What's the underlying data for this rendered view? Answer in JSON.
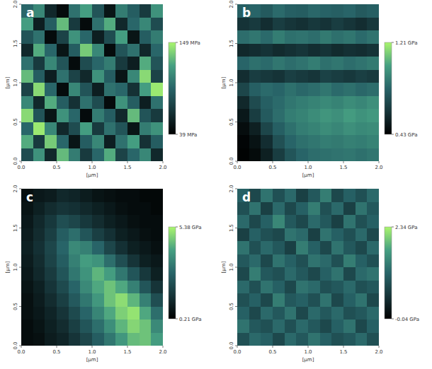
{
  "chart_data": [
    {
      "type": "heatmap",
      "title": "a",
      "x_label": "[μm]",
      "y_label": "[μm]",
      "xlim": [
        0,
        2
      ],
      "ylim": [
        0,
        2
      ],
      "xticks": [
        {
          "value": 0,
          "label": "0.0"
        },
        {
          "value": 0.5,
          "label": "0.5"
        },
        {
          "value": 1,
          "label": "1.0"
        },
        {
          "value": 1.5,
          "label": "1.5"
        },
        {
          "value": 2,
          "label": "2.0"
        }
      ],
      "yticks": [
        {
          "value": 0,
          "label": "0.0"
        },
        {
          "value": 0.5,
          "label": "0.5"
        },
        {
          "value": 1,
          "label": "1.0"
        },
        {
          "value": 1.5,
          "label": "1.5"
        },
        {
          "value": 2,
          "label": "2.0"
        }
      ],
      "color_range": [
        39,
        149
      ],
      "color_ticks": [
        {
          "value": 149,
          "label": "149 MPa"
        },
        {
          "value": 39,
          "label": "39 MPa"
        }
      ],
      "values": [
        [
          95,
          110,
          60,
          45,
          100,
          120,
          85,
          50,
          105,
          90,
          70,
          115
        ],
        [
          120,
          55,
          90,
          130,
          70,
          45,
          100,
          125,
          60,
          95,
          110,
          80
        ],
        [
          85,
          100,
          45,
          75,
          115,
          95,
          55,
          80,
          120,
          50,
          90,
          105
        ],
        [
          60,
          125,
          95,
          50,
          90,
          135,
          110,
          45,
          85,
          100,
          60,
          95
        ],
        [
          100,
          70,
          110,
          85,
          45,
          80,
          95,
          105,
          70,
          55,
          125,
          85
        ],
        [
          130,
          90,
          55,
          100,
          75,
          60,
          115,
          90,
          50,
          110,
          140,
          75
        ],
        [
          75,
          140,
          95,
          45,
          110,
          85,
          55,
          100,
          95,
          65,
          120,
          145
        ],
        [
          110,
          60,
          125,
          90,
          65,
          100,
          80,
          45,
          115,
          90,
          55,
          100
        ],
        [
          140,
          85,
          50,
          115,
          95,
          45,
          105,
          90,
          60,
          130,
          85,
          70
        ],
        [
          95,
          145,
          110,
          60,
          80,
          120,
          70,
          100,
          85,
          50,
          105,
          115
        ],
        [
          125,
          70,
          135,
          95,
          50,
          90,
          110,
          55,
          100,
          120,
          65,
          90
        ],
        [
          80,
          115,
          60,
          130,
          105,
          70,
          95,
          125,
          75,
          95,
          110,
          60
        ]
      ]
    },
    {
      "type": "heatmap",
      "title": "b",
      "x_label": "[μm]",
      "y_label": "[μm]",
      "xlim": [
        0,
        2
      ],
      "ylim": [
        0,
        2
      ],
      "xticks": [
        {
          "value": 0,
          "label": "0.0"
        },
        {
          "value": 0.5,
          "label": "0.5"
        },
        {
          "value": 1,
          "label": "1.0"
        },
        {
          "value": 1.5,
          "label": "1.5"
        },
        {
          "value": 2,
          "label": "2.0"
        }
      ],
      "yticks": [
        {
          "value": 0,
          "label": "0.0"
        },
        {
          "value": 0.5,
          "label": "0.5"
        },
        {
          "value": 1,
          "label": "1.0"
        },
        {
          "value": 1.5,
          "label": "1.5"
        },
        {
          "value": 2,
          "label": "2.0"
        }
      ],
      "color_range": [
        0.43,
        1.21
      ],
      "color_ticks": [
        {
          "value": 1.21,
          "label": "1.21 GPa"
        },
        {
          "value": 0.43,
          "label": "0.43 GPa"
        }
      ],
      "values": [
        [
          0.8,
          0.82,
          0.78,
          0.84,
          0.8,
          0.79,
          0.83,
          0.81,
          0.8,
          0.82,
          0.78,
          0.8
        ],
        [
          0.62,
          0.65,
          0.6,
          0.66,
          0.63,
          0.61,
          0.64,
          0.62,
          0.66,
          0.63,
          0.6,
          0.64
        ],
        [
          0.85,
          0.88,
          0.84,
          0.9,
          0.86,
          0.87,
          0.85,
          0.89,
          0.86,
          0.88,
          0.84,
          0.87
        ],
        [
          0.58,
          0.6,
          0.62,
          0.59,
          0.61,
          0.63,
          0.6,
          0.62,
          0.59,
          0.61,
          0.6,
          0.62
        ],
        [
          0.82,
          0.86,
          0.84,
          0.88,
          0.85,
          0.87,
          0.9,
          0.86,
          0.88,
          0.85,
          0.87,
          0.89
        ],
        [
          0.6,
          0.66,
          0.64,
          0.62,
          0.67,
          0.65,
          0.63,
          0.68,
          0.66,
          0.64,
          0.67,
          0.65
        ],
        [
          0.7,
          0.8,
          0.84,
          0.82,
          0.86,
          0.83,
          0.85,
          0.88,
          0.84,
          0.86,
          0.83,
          0.85
        ],
        [
          0.58,
          0.72,
          0.8,
          0.84,
          0.88,
          0.9,
          0.92,
          0.94,
          0.92,
          0.95,
          0.93,
          0.96
        ],
        [
          0.52,
          0.66,
          0.78,
          0.85,
          0.9,
          0.92,
          0.95,
          0.98,
          0.96,
          1.0,
          0.97,
          0.99
        ],
        [
          0.48,
          0.55,
          0.7,
          0.8,
          0.86,
          0.9,
          0.92,
          0.95,
          0.93,
          0.96,
          0.94,
          0.95
        ],
        [
          0.45,
          0.5,
          0.6,
          0.74,
          0.82,
          0.86,
          0.88,
          0.9,
          0.89,
          0.91,
          0.9,
          0.92
        ],
        [
          0.44,
          0.47,
          0.55,
          0.66,
          0.76,
          0.82,
          0.85,
          0.86,
          0.87,
          0.88,
          0.86,
          0.88
        ]
      ]
    },
    {
      "type": "heatmap",
      "title": "c",
      "x_label": "[μm]",
      "y_label": "[μm]",
      "xlim": [
        0,
        2
      ],
      "ylim": [
        0,
        2
      ],
      "xticks": [
        {
          "value": 0,
          "label": "0.0"
        },
        {
          "value": 0.5,
          "label": "0.5"
        },
        {
          "value": 1,
          "label": "1.0"
        },
        {
          "value": 1.5,
          "label": "1.5"
        },
        {
          "value": 2,
          "label": "2.0"
        }
      ],
      "yticks": [
        {
          "value": 0,
          "label": "0.0"
        },
        {
          "value": 0.5,
          "label": "0.5"
        },
        {
          "value": 1,
          "label": "1.0"
        },
        {
          "value": 1.5,
          "label": "1.5"
        },
        {
          "value": 2,
          "label": "2.0"
        }
      ],
      "color_range": [
        0.21,
        5.38
      ],
      "color_ticks": [
        {
          "value": 5.38,
          "label": "5.38 GPa"
        },
        {
          "value": 0.21,
          "label": "0.21 GPa"
        }
      ],
      "values": [
        [
          0.6,
          0.8,
          0.9,
          1.2,
          1.1,
          0.9,
          0.7,
          0.6,
          0.5,
          0.5,
          0.4,
          0.4
        ],
        [
          0.7,
          1.0,
          1.3,
          1.5,
          1.4,
          1.2,
          1.0,
          0.8,
          0.6,
          0.5,
          0.5,
          0.4
        ],
        [
          0.8,
          1.2,
          1.6,
          2.2,
          2.0,
          1.6,
          1.3,
          1.0,
          0.8,
          0.6,
          0.5,
          0.5
        ],
        [
          0.9,
          1.3,
          1.8,
          2.6,
          3.0,
          2.4,
          1.8,
          1.4,
          1.0,
          0.8,
          0.6,
          0.5
        ],
        [
          1.0,
          1.4,
          2.0,
          2.8,
          3.6,
          3.4,
          2.8,
          2.0,
          1.4,
          1.0,
          0.8,
          0.6
        ],
        [
          0.9,
          1.3,
          1.9,
          2.6,
          3.4,
          4.0,
          3.8,
          3.0,
          2.2,
          1.5,
          1.0,
          0.8
        ],
        [
          0.8,
          1.2,
          1.7,
          2.4,
          3.2,
          3.8,
          4.4,
          4.0,
          3.2,
          2.4,
          1.6,
          1.0
        ],
        [
          0.7,
          1.0,
          1.5,
          2.1,
          2.8,
          3.6,
          4.2,
          4.6,
          4.2,
          3.4,
          2.4,
          1.5
        ],
        [
          0.6,
          0.9,
          1.3,
          1.8,
          2.5,
          3.2,
          3.9,
          4.6,
          5.0,
          4.4,
          3.4,
          2.2
        ],
        [
          0.6,
          0.8,
          1.1,
          1.5,
          2.1,
          2.8,
          3.5,
          4.2,
          4.8,
          5.1,
          4.2,
          3.0
        ],
        [
          0.5,
          0.7,
          1.0,
          1.3,
          1.8,
          2.4,
          3.0,
          3.7,
          4.4,
          4.9,
          4.6,
          3.6
        ],
        [
          0.5,
          0.6,
          0.9,
          1.1,
          1.5,
          2.0,
          2.6,
          3.2,
          3.9,
          4.5,
          4.6,
          4.0
        ]
      ]
    },
    {
      "type": "heatmap",
      "title": "d",
      "x_label": "[μm]",
      "y_label": "[μm]",
      "xlim": [
        0,
        2
      ],
      "ylim": [
        0,
        2
      ],
      "xticks": [
        {
          "value": 0,
          "label": "0.0"
        },
        {
          "value": 0.5,
          "label": "0.5"
        },
        {
          "value": 1,
          "label": "1.0"
        },
        {
          "value": 1.5,
          "label": "1.5"
        },
        {
          "value": 2,
          "label": "2.0"
        }
      ],
      "yticks": [
        {
          "value": 0,
          "label": "0.0"
        },
        {
          "value": 0.5,
          "label": "0.5"
        },
        {
          "value": 1,
          "label": "1.0"
        },
        {
          "value": 1.5,
          "label": "1.5"
        },
        {
          "value": 2,
          "label": "2.0"
        }
      ],
      "color_range": [
        -0.04,
        2.34
      ],
      "color_ticks": [
        {
          "value": 2.34,
          "label": "2.34 GPa"
        },
        {
          "value": -0.04,
          "label": "-0.04 GPa"
        }
      ],
      "values": [
        [
          1.1,
          0.8,
          1.3,
          0.9,
          1.2,
          0.7,
          1.0,
          1.4,
          0.8,
          1.1,
          0.9,
          1.2
        ],
        [
          0.9,
          1.3,
          0.7,
          1.2,
          0.8,
          1.1,
          1.4,
          0.9,
          1.2,
          0.7,
          1.3,
          1.0
        ],
        [
          1.2,
          0.8,
          1.1,
          1.5,
          1.0,
          0.8,
          1.2,
          1.0,
          0.7,
          1.3,
          0.9,
          1.1
        ],
        [
          0.7,
          1.1,
          0.9,
          0.8,
          1.3,
          1.2,
          0.7,
          1.3,
          1.1,
          0.9,
          1.2,
          0.8
        ],
        [
          1.3,
          0.9,
          1.2,
          1.0,
          0.7,
          1.4,
          1.1,
          0.8,
          1.3,
          1.0,
          0.8,
          1.2
        ],
        [
          1.0,
          1.2,
          0.8,
          1.3,
          1.1,
          0.9,
          1.3,
          1.2,
          0.9,
          1.4,
          1.1,
          0.9
        ],
        [
          0.8,
          1.4,
          1.0,
          0.9,
          1.2,
          1.0,
          0.8,
          1.1,
          1.3,
          0.8,
          1.2,
          1.3
        ],
        [
          1.2,
          0.9,
          1.3,
          1.1,
          0.8,
          1.3,
          1.2,
          0.9,
          1.0,
          1.2,
          0.9,
          1.0
        ],
        [
          0.9,
          1.1,
          0.8,
          1.4,
          1.0,
          1.1,
          0.9,
          1.3,
          0.8,
          1.1,
          1.3,
          0.8
        ],
        [
          1.1,
          0.8,
          1.2,
          1.0,
          1.3,
          0.8,
          1.2,
          1.0,
          1.2,
          0.9,
          1.0,
          1.2
        ],
        [
          1.3,
          1.0,
          0.9,
          1.2,
          0.9,
          1.2,
          1.0,
          0.8,
          1.1,
          1.3,
          0.8,
          1.1
        ],
        [
          0.9,
          1.2,
          1.1,
          0.8,
          1.2,
          1.0,
          1.3,
          1.1,
          0.9,
          1.0,
          1.2,
          0.9
        ]
      ]
    }
  ]
}
